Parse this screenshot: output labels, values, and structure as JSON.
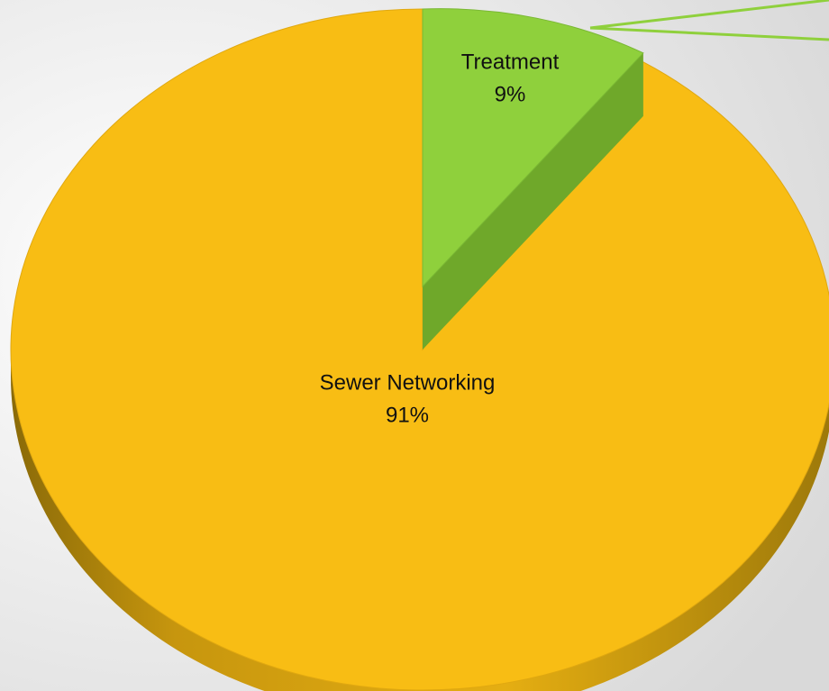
{
  "chart_data": {
    "type": "pie3d",
    "categories": [
      "Treatment",
      "Sewer Networking"
    ],
    "values": [
      9,
      91
    ],
    "value_labels": [
      "9%",
      "91%"
    ],
    "colors": [
      "#8fd03c",
      "#f8bd14"
    ]
  }
}
